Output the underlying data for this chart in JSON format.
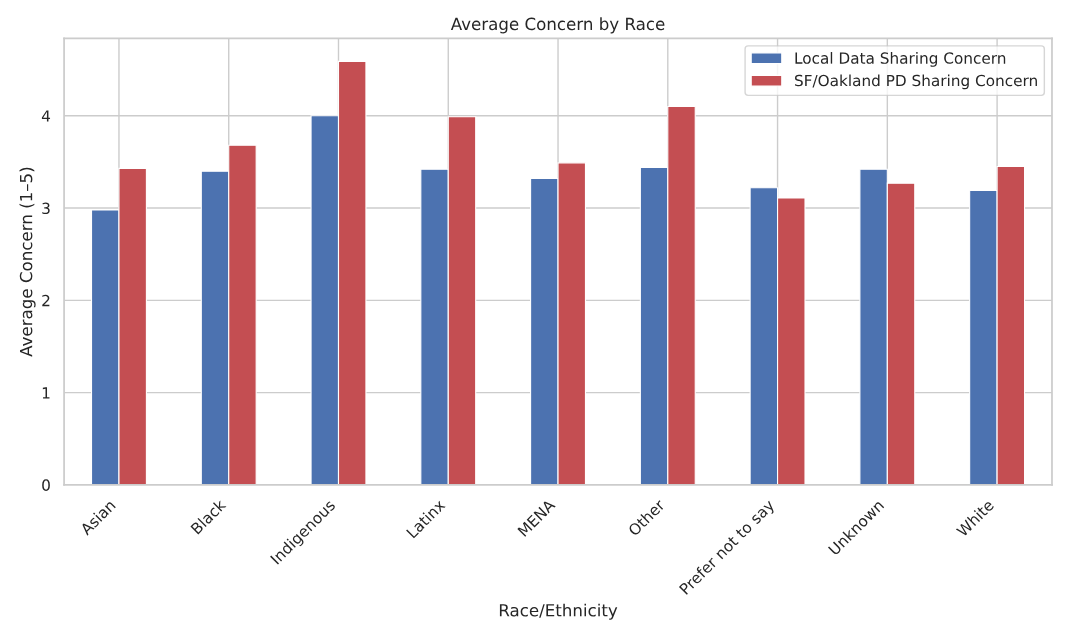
{
  "chart_data": {
    "type": "bar",
    "title": "Average Concern by Race",
    "xlabel": "Race/Ethnicity",
    "ylabel": "Average Concern (1–5)",
    "categories": [
      "Asian",
      "Black",
      "Indigenous",
      "Latinx",
      "MENA",
      "Other",
      "Prefer not to say",
      "Unknown",
      "White"
    ],
    "series": [
      {
        "name": "Local Data Sharing Concern",
        "color": "#4c72b0",
        "values": [
          2.98,
          3.4,
          4.0,
          3.42,
          3.32,
          3.44,
          3.22,
          3.42,
          3.19
        ]
      },
      {
        "name": "SF/Oakland PD Sharing Concern",
        "color": "#c44e52",
        "values": [
          3.43,
          3.68,
          4.59,
          3.99,
          3.49,
          4.1,
          3.11,
          3.27,
          3.45
        ]
      }
    ],
    "ylim": [
      0,
      4.84
    ],
    "yticks": [
      0,
      1,
      2,
      3,
      4
    ],
    "grid": true,
    "legend": "top right"
  }
}
